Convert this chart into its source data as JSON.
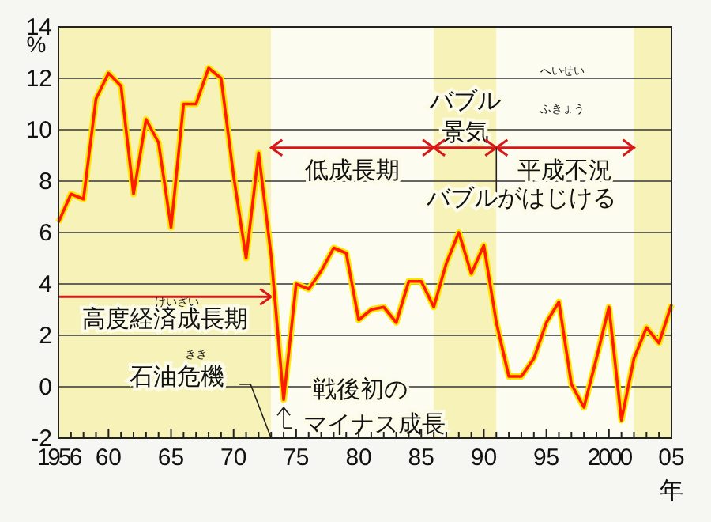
{
  "chart_data": {
    "type": "line",
    "xlabel": "年",
    "ylabel": "%",
    "x": [
      1956,
      1957,
      1958,
      1959,
      1960,
      1961,
      1962,
      1963,
      1964,
      1965,
      1966,
      1967,
      1968,
      1969,
      1970,
      1971,
      1972,
      1973,
      1974,
      1975,
      1976,
      1977,
      1978,
      1979,
      1980,
      1981,
      1982,
      1983,
      1984,
      1985,
      1986,
      1987,
      1988,
      1989,
      1990,
      1991,
      1992,
      1993,
      1994,
      1995,
      1996,
      1997,
      1998,
      1999,
      2000,
      2001,
      2002,
      2003,
      2004,
      2005
    ],
    "series": [
      {
        "color": "#ff1a00",
        "values": [
          6.4,
          7.5,
          7.3,
          11.2,
          12.2,
          11.7,
          7.5,
          10.4,
          9.5,
          6.2,
          11.0,
          11.0,
          12.4,
          12.0,
          8.2,
          5.0,
          9.1,
          5.1,
          -0.5,
          4.0,
          3.8,
          4.5,
          5.4,
          5.2,
          2.6,
          3.0,
          3.1,
          2.5,
          4.1,
          4.1,
          3.1,
          4.8,
          6.0,
          4.4,
          5.5,
          2.5,
          0.4,
          0.4,
          1.1,
          2.5,
          3.3,
          0.1,
          -0.8,
          1.1,
          3.1,
          -1.3,
          1.1,
          2.3,
          1.7,
          3.2
        ]
      }
    ],
    "xlim": [
      1956,
      2005
    ],
    "xticks": [
      1956,
      {
        "value": 1957,
        "label": null
      },
      {
        "value": 1958,
        "label": null
      },
      {
        "value": 1959,
        "label": null
      },
      {
        "value": 1960,
        "label": "60"
      },
      {
        "value": 1961,
        "label": null
      },
      {
        "value": 1962,
        "label": null
      },
      {
        "value": 1963,
        "label": null
      },
      {
        "value": 1964,
        "label": null
      },
      {
        "value": 1965,
        "label": "65"
      },
      {
        "value": 1966,
        "label": null
      },
      {
        "value": 1967,
        "label": null
      },
      {
        "value": 1968,
        "label": null
      },
      {
        "value": 1969,
        "label": null
      },
      {
        "value": 1970,
        "label": "70"
      },
      {
        "value": 1971,
        "label": null
      },
      {
        "value": 1972,
        "label": null
      },
      {
        "value": 1973,
        "label": null
      },
      {
        "value": 1974,
        "label": null
      },
      {
        "value": 1975,
        "label": "75"
      },
      {
        "value": 1976,
        "label": null
      },
      {
        "value": 1977,
        "label": null
      },
      {
        "value": 1978,
        "label": null
      },
      {
        "value": 1979,
        "label": null
      },
      {
        "value": 1980,
        "label": "80"
      },
      {
        "value": 1981,
        "label": null
      },
      {
        "value": 1982,
        "label": null
      },
      {
        "value": 1983,
        "label": null
      },
      {
        "value": 1984,
        "label": null
      },
      {
        "value": 1985,
        "label": "85"
      },
      {
        "value": 1986,
        "label": null
      },
      {
        "value": 1987,
        "label": null
      },
      {
        "value": 1988,
        "label": null
      },
      {
        "value": 1989,
        "label": null
      },
      {
        "value": 1990,
        "label": "90"
      },
      {
        "value": 1991,
        "label": null
      },
      {
        "value": 1992,
        "label": null
      },
      {
        "value": 1993,
        "label": null
      },
      {
        "value": 1994,
        "label": null
      },
      {
        "value": 1995,
        "label": "95"
      },
      {
        "value": 1996,
        "label": null
      },
      {
        "value": 1997,
        "label": null
      },
      {
        "value": 1998,
        "label": null
      },
      {
        "value": 1999,
        "label": null
      },
      {
        "value": 2000,
        "label": "2000"
      },
      {
        "value": 2001,
        "label": null
      },
      {
        "value": 2002,
        "label": null
      },
      {
        "value": 2003,
        "label": null
      },
      {
        "value": 2004,
        "label": null
      },
      {
        "value": 2005,
        "label": "05"
      }
    ],
    "ylim": [
      -2,
      14
    ],
    "yticks": [
      -2,
      0,
      2,
      4,
      6,
      8,
      10,
      12,
      14
    ],
    "grid": "y",
    "marker": "none",
    "line_style": "solid",
    "bands": [
      {
        "axis": "x",
        "from": 1956,
        "to": 1973,
        "label": "高度経済成長期",
        "color": "#f7f2b8"
      },
      {
        "axis": "x",
        "from": 1973,
        "to": 1986,
        "label": "低成長期",
        "color": "#fdfcf0"
      },
      {
        "axis": "x",
        "from": 1986,
        "to": 1991,
        "label": "バブル景気",
        "color": "#f7f2b8"
      },
      {
        "axis": "x",
        "from": 1991,
        "to": 2002,
        "label": "平成不況",
        "color": "#fdfcf0"
      },
      {
        "axis": "x",
        "from": 2002,
        "to": 2005,
        "color": "#f7f2b8"
      }
    ],
    "annotations": [
      "けいざい",
      "へいせい",
      "ふきょう",
      "石油危機",
      "きき",
      "バブルがはじける",
      "戦後初の",
      "マイナス成長"
    ]
  }
}
